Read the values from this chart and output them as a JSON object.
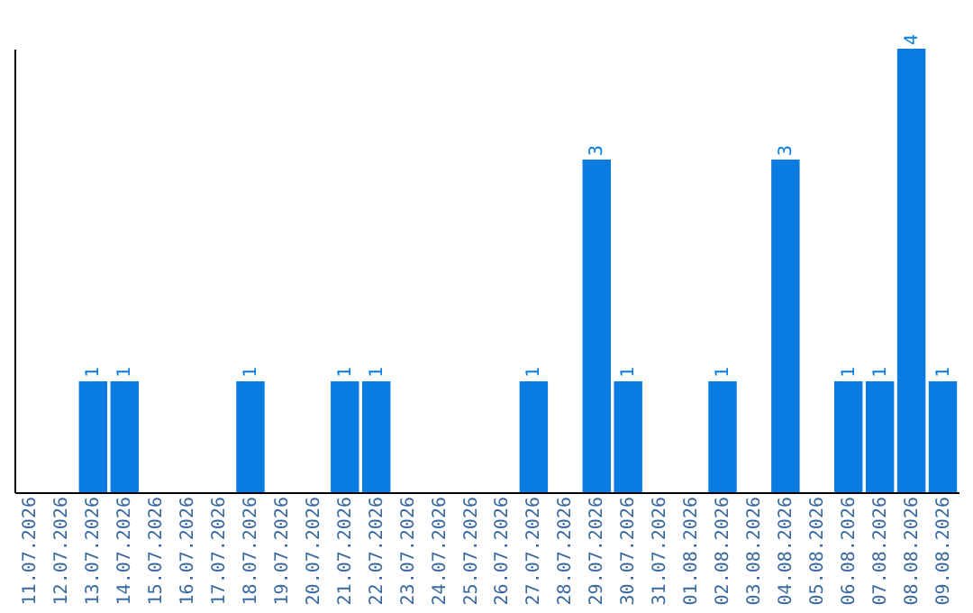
{
  "chart_data": {
    "type": "bar",
    "categories": [
      "11.07.2026",
      "12.07.2026",
      "13.07.2026",
      "14.07.2026",
      "15.07.2026",
      "16.07.2026",
      "17.07.2026",
      "18.07.2026",
      "19.07.2026",
      "20.07.2026",
      "21.07.2026",
      "22.07.2026",
      "23.07.2026",
      "24.07.2026",
      "25.07.2026",
      "26.07.2026",
      "27.07.2026",
      "28.07.2026",
      "29.07.2026",
      "30.07.2026",
      "31.07.2026",
      "01.08.2026",
      "02.08.2026",
      "03.08.2026",
      "04.08.2026",
      "05.08.2026",
      "06.08.2026",
      "07.08.2026",
      "08.08.2026",
      "09.08.2026"
    ],
    "values": [
      null,
      null,
      1,
      1,
      null,
      null,
      null,
      1,
      null,
      null,
      1,
      1,
      null,
      null,
      null,
      null,
      1,
      null,
      3,
      1,
      null,
      null,
      1,
      null,
      3,
      null,
      1,
      1,
      4,
      1
    ],
    "color": "#0a7be0",
    "data_labels": true,
    "grid": false,
    "tick_labels": "x"
  }
}
